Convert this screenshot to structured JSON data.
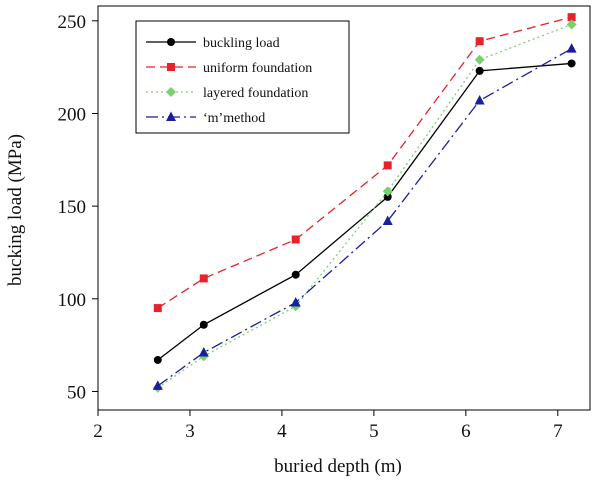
{
  "chart_data": {
    "type": "line",
    "title": "",
    "xlabel": "buried depth (m)",
    "ylabel": "bucking load (MPa)",
    "xlim": [
      2,
      7.35
    ],
    "ylim": [
      40,
      258
    ],
    "xticks": [
      2,
      3,
      4,
      5,
      6,
      7
    ],
    "yticks": [
      50,
      100,
      150,
      200,
      250
    ],
    "grid": false,
    "legend_position": "top-left",
    "x": [
      2.65,
      3.15,
      4.15,
      5.15,
      6.15,
      7.15
    ],
    "series": [
      {
        "name": "buckling load",
        "values": [
          67,
          86,
          113,
          155,
          223,
          227
        ],
        "color": "#000000",
        "marker": "circle",
        "dash": ""
      },
      {
        "name": "uniform foundation",
        "values": [
          95,
          111,
          132,
          172,
          239,
          252
        ],
        "color": "#e8222a",
        "marker": "square",
        "dash": "9 5"
      },
      {
        "name": "layered foundation",
        "values": [
          52,
          69,
          96,
          158,
          229,
          248
        ],
        "color": "#7ad06e",
        "marker": "diamond",
        "dash": "2 3"
      },
      {
        "name": "‘m’method",
        "values": [
          53,
          71,
          98,
          142,
          207,
          235
        ],
        "color": "#1a1f9c",
        "marker": "triangle",
        "dash": "12 4 2 4"
      }
    ]
  }
}
